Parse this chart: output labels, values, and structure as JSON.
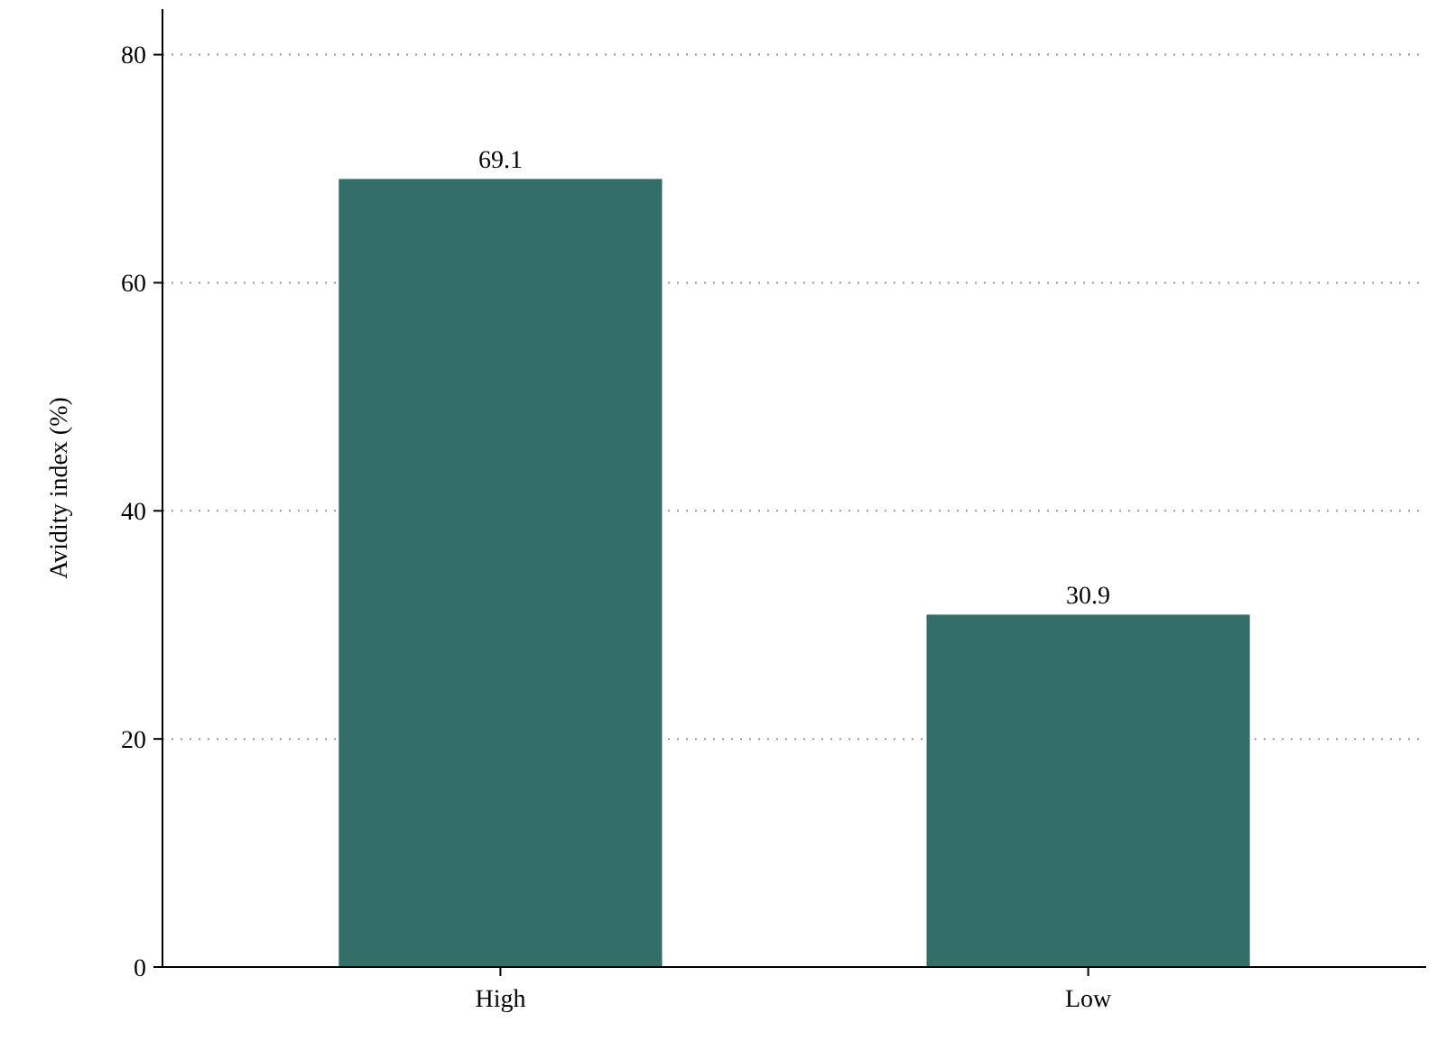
{
  "chart_data": {
    "type": "bar",
    "ylabel": "Avidity index (%)",
    "categories": [
      "High",
      "Low"
    ],
    "values": [
      69.1,
      30.9
    ],
    "color": "#336e68",
    "ylim": [
      0,
      84
    ],
    "yticks": [
      0,
      20,
      40,
      60,
      80
    ],
    "grid": "y",
    "data_labels": true
  }
}
